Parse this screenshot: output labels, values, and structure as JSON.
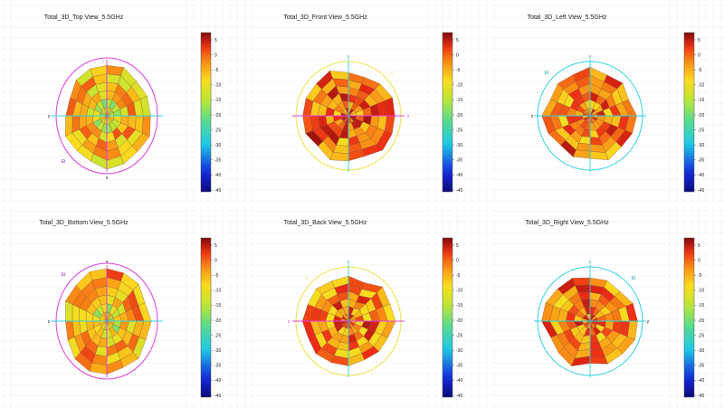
{
  "figure": {
    "palette": {
      "cbar_top": "#7a0a0a",
      "cbar_bottom": "#0a0a78",
      "magenta_axis": "#e040e0",
      "cyan_axis": "#30d0e0",
      "yellow_axis": "#f0e040"
    }
  },
  "chart_data": [
    {
      "type": "heatmap",
      "title": "Total_3D_Top View_5.5GHz",
      "view": "top",
      "axes": {
        "horizontal": "z",
        "vertical": "x",
        "extra": "Et"
      },
      "colorbar": {
        "ticks": [
          5,
          0,
          -5,
          -10,
          -15,
          -20,
          -25,
          -30,
          -35,
          -40,
          -45
        ],
        "range": [
          -45,
          5
        ]
      },
      "dominant_level_db": -8
    },
    {
      "type": "heatmap",
      "title": "Total_3D_Front View_5.5GHz",
      "view": "front",
      "axes": {
        "horizontal": "x",
        "vertical": "y",
        "extra": "z"
      },
      "colorbar": {
        "ticks": [
          5,
          0,
          -5,
          -10,
          -15,
          -20,
          -25,
          -30,
          -35,
          -40,
          -45
        ],
        "range": [
          -45,
          5
        ]
      },
      "dominant_level_db": -3
    },
    {
      "type": "heatmap",
      "title": "Total_3D_Left View_5.5GHz",
      "view": "left",
      "axes": {
        "horizontal": "z",
        "vertical": "y",
        "extra": "Et"
      },
      "colorbar": {
        "ticks": [
          5,
          0,
          -5,
          -10,
          -15,
          -20,
          -25,
          -30,
          -35,
          -40,
          -45
        ],
        "range": [
          -45,
          5
        ]
      },
      "dominant_level_db": -4
    },
    {
      "type": "heatmap",
      "title": "Total_3D_Bottom View_5.5GHz",
      "view": "bottom",
      "axes": {
        "horizontal": "z",
        "vertical": "x",
        "extra": "Et"
      },
      "colorbar": {
        "ticks": [
          5,
          0,
          -5,
          -10,
          -15,
          -20,
          -25,
          -30,
          -35,
          -40,
          -45
        ],
        "range": [
          -45,
          5
        ]
      },
      "dominant_level_db": -7
    },
    {
      "type": "heatmap",
      "title": "Total_3D_Back View_5.5GHz",
      "view": "back",
      "axes": {
        "horizontal": "x",
        "vertical": "y",
        "extra": "z"
      },
      "colorbar": {
        "ticks": [
          5,
          0,
          -5,
          -10,
          -15,
          -20,
          -25,
          -30,
          -35,
          -40,
          -45
        ],
        "range": [
          -45,
          5
        ]
      },
      "dominant_level_db": -4
    },
    {
      "type": "heatmap",
      "title": "Total_3D_Right View_5.5GHz",
      "view": "right",
      "axes": {
        "horizontal": "z",
        "vertical": "y",
        "extra": "Et"
      },
      "colorbar": {
        "ticks": [
          5,
          0,
          -5,
          -10,
          -15,
          -20,
          -25,
          -30,
          -35,
          -40,
          -45
        ],
        "range": [
          -45,
          5
        ]
      },
      "dominant_level_db": -4
    }
  ]
}
